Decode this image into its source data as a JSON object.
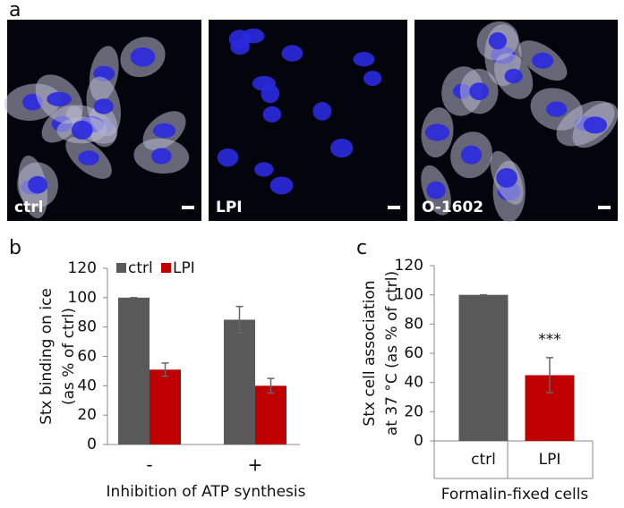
{
  "panel_a": {
    "letter": "a",
    "images": [
      "ctrl",
      "LPI",
      "O-1602"
    ]
  },
  "chart_data": [
    {
      "type": "bar",
      "panel": "b",
      "ylabel": [
        "Stx binding on ice",
        "(as % of ctrl)"
      ],
      "xlabel": "Inhibition of ATP synthesis",
      "categories": [
        "-",
        "+"
      ],
      "series": [
        {
          "name": "ctrl",
          "color": "#595959",
          "values": [
            100,
            85
          ],
          "errors": [
            0,
            9
          ]
        },
        {
          "name": "LPI",
          "color": "#c00000",
          "values": [
            51,
            40
          ],
          "errors": [
            4.5,
            5
          ]
        }
      ],
      "ylim": [
        0,
        120
      ],
      "yticks": [
        0,
        20,
        40,
        60,
        80,
        100,
        120
      ],
      "legend": "top"
    },
    {
      "type": "bar",
      "panel": "c",
      "ylabel": [
        "Stx cell association",
        "at 37 °C (as % of ctrl)"
      ],
      "xlabel": "Formalin-fixed cells",
      "categories": [
        "ctrl",
        "LPI"
      ],
      "values": [
        100,
        45
      ],
      "errors": [
        0,
        12
      ],
      "colors": [
        "#595959",
        "#c00000"
      ],
      "annotation": "***",
      "ylim": [
        0,
        120
      ],
      "yticks": [
        0,
        20,
        40,
        60,
        80,
        100,
        120
      ]
    }
  ]
}
